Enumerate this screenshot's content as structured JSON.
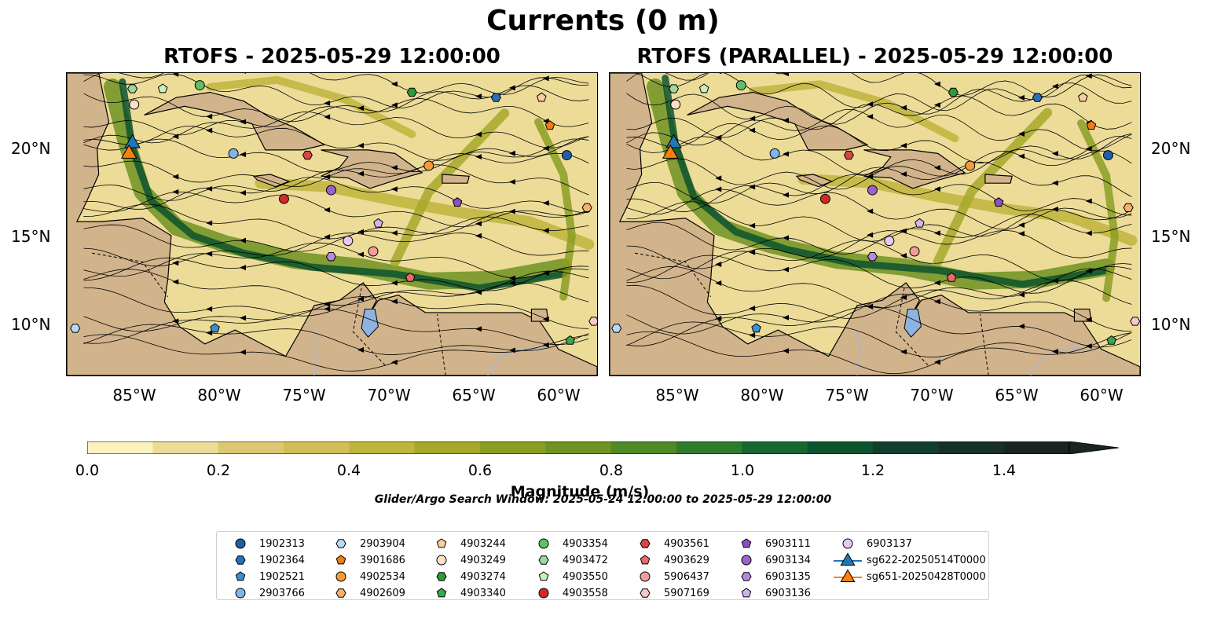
{
  "figure": {
    "suptitle": "Currents (0 m)",
    "left_title": "RTOFS - 2025-05-29 12:00:00",
    "right_title": "RTOFS (PARALLEL) - 2025-05-29 12:00:00",
    "lat_ticks": [
      "20°N",
      "15°N",
      "10°N"
    ],
    "lon_ticks": [
      "85°W",
      "80°W",
      "75°W",
      "70°W",
      "65°W",
      "60°W"
    ],
    "colorbar": {
      "label": "Magnitude (m/s)",
      "ticks": [
        "0.0",
        "0.2",
        "0.4",
        "0.6",
        "0.8",
        "1.0",
        "1.2",
        "1.4"
      ],
      "range": [
        0,
        1.5
      ],
      "colors": [
        "#faf3c0",
        "#ecdc98",
        "#dcc872",
        "#d0bf58",
        "#bfb43c",
        "#a6a82a",
        "#8b9d22",
        "#6f9222",
        "#4f8a26",
        "#2f7a2c",
        "#16682e",
        "#0d542e",
        "#123f2c",
        "#18302a",
        "#1a251f"
      ],
      "extend": "max"
    },
    "search_window": "Glider/Argo Search Window: 2025-05-24 12:00:00 to 2025-05-29 12:00:00"
  },
  "colors": {
    "land": "#d2b48c",
    "lake": "#8fb3e0",
    "river": "#a7b8cc",
    "streamline": "#000000"
  },
  "map_extent": {
    "lon": [
      -89.5,
      -58.0
    ],
    "lat": [
      7.0,
      24.3
    ]
  },
  "platforms": [
    {
      "id": "1902313",
      "marker": "circle",
      "color": "#1f5fa6",
      "lon": -59.8,
      "lat": 19.6
    },
    {
      "id": "1902364",
      "marker": "hexagon",
      "color": "#2a6fb8",
      "lon": -64.0,
      "lat": 22.9
    },
    {
      "id": "1902521",
      "marker": "pentagon",
      "color": "#3a8fd0",
      "lon": -80.7,
      "lat": 9.7
    },
    {
      "id": "2903766",
      "marker": "circle",
      "color": "#7fb5e8",
      "lon": -79.6,
      "lat": 19.7
    },
    {
      "id": "2903904",
      "marker": "hexagon",
      "color": "#b9daf5",
      "lon": -89.0,
      "lat": 9.7
    },
    {
      "id": "3901686",
      "marker": "pentagon",
      "color": "#f07d12",
      "lon": -60.8,
      "lat": 21.3
    },
    {
      "id": "4902534",
      "marker": "circle",
      "color": "#f59a3a",
      "lon": -68.0,
      "lat": 19.0
    },
    {
      "id": "4902609",
      "marker": "hexagon",
      "color": "#f5b06a",
      "lon": -58.6,
      "lat": 16.6
    },
    {
      "id": "4903244",
      "marker": "pentagon",
      "color": "#f9cfa0",
      "lon": -61.3,
      "lat": 22.9
    },
    {
      "id": "4903249",
      "marker": "circle",
      "color": "#fde1c4",
      "lon": -85.5,
      "lat": 22.5
    },
    {
      "id": "4903274",
      "marker": "hexagon",
      "color": "#2e9a3b",
      "lon": -69.0,
      "lat": 23.2
    },
    {
      "id": "4903340",
      "marker": "pentagon",
      "color": "#3aa84a",
      "lon": -59.6,
      "lat": 9.0
    },
    {
      "id": "4903354",
      "marker": "circle",
      "color": "#5ec265",
      "lon": -81.6,
      "lat": 23.6
    },
    {
      "id": "4903472",
      "marker": "hexagon",
      "color": "#9bd99a",
      "lon": -85.6,
      "lat": 23.4
    },
    {
      "id": "4903550",
      "marker": "pentagon",
      "color": "#c8f0c0",
      "lon": -83.8,
      "lat": 23.4
    },
    {
      "id": "4903558",
      "marker": "circle",
      "color": "#cf2a2a",
      "lon": -76.6,
      "lat": 17.1
    },
    {
      "id": "4903561",
      "marker": "hexagon",
      "color": "#d84545",
      "lon": -75.2,
      "lat": 19.6
    },
    {
      "id": "4903629",
      "marker": "pentagon",
      "color": "#e96a6a",
      "lon": -69.1,
      "lat": 12.6
    },
    {
      "id": "5906437",
      "marker": "circle",
      "color": "#f29c9c",
      "lon": -71.3,
      "lat": 14.1
    },
    {
      "id": "5907169",
      "marker": "hexagon",
      "color": "#f7c8c8",
      "lon": -58.2,
      "lat": 10.1
    },
    {
      "id": "6903111",
      "marker": "pentagon",
      "color": "#8a4fc0",
      "lon": -66.3,
      "lat": 16.9
    },
    {
      "id": "6903134",
      "marker": "circle",
      "color": "#9b63c9",
      "lon": -73.8,
      "lat": 17.6
    },
    {
      "id": "6903135",
      "marker": "hexagon",
      "color": "#b58ad8",
      "lon": -73.8,
      "lat": 13.8
    },
    {
      "id": "6903136",
      "marker": "pentagon",
      "color": "#d0b4ea",
      "lon": -71.0,
      "lat": 15.7
    },
    {
      "id": "6903137",
      "marker": "circle",
      "color": "#e8c9f2",
      "lon": -72.8,
      "lat": 14.7
    },
    {
      "id": "sg622-20250514T0000",
      "marker": "triangle",
      "color": "#1f77b4",
      "lon": -85.6,
      "lat": 20.4
    },
    {
      "id": "sg651-20250428T0000",
      "marker": "triangle",
      "color": "#ff7f0e",
      "lon": -85.8,
      "lat": 19.8
    }
  ],
  "legend": {
    "columns": [
      [
        "1902313",
        "1902364",
        "1902521",
        "2903766"
      ],
      [
        "2903904",
        "3901686",
        "4902534",
        "4902609"
      ],
      [
        "4903244",
        "4903249",
        "4903274",
        "4903340"
      ],
      [
        "4903354",
        "4903472",
        "4903550",
        "4903558"
      ],
      [
        "4903561",
        "4903629",
        "5906437",
        "5907169"
      ],
      [
        "6903111",
        "6903134",
        "6903135",
        "6903136"
      ],
      [
        "6903137",
        "sg622-20250514T0000",
        "sg651-20250428T0000"
      ]
    ]
  }
}
